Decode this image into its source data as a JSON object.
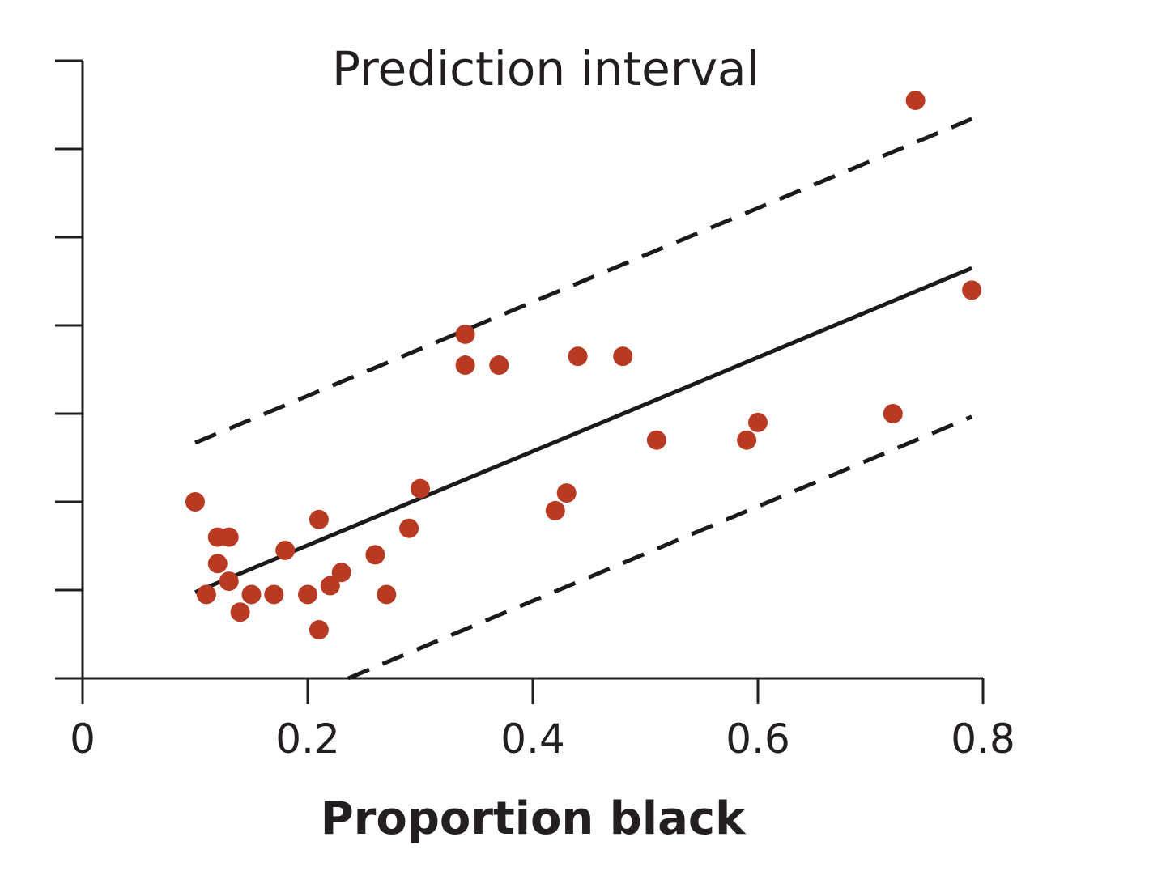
{
  "chart_data": {
    "type": "scatter",
    "title": "Prediction interval",
    "xlabel": "Proportion black",
    "ylabel": "",
    "xlim": [
      0,
      0.8
    ],
    "ylim": [
      0,
      14
    ],
    "x_ticks": [
      "0",
      "0.2",
      "0.4",
      "0.6",
      "0.8"
    ],
    "y_ticks": [
      0,
      2,
      4,
      6,
      8,
      10,
      12,
      14
    ],
    "y_tick_labels_shown": false,
    "grid": false,
    "legend": "none",
    "point_color": "#b83a22",
    "points": [
      [
        0.74,
        13.1
      ],
      [
        0.79,
        8.8
      ],
      [
        0.34,
        7.8
      ],
      [
        0.34,
        7.1
      ],
      [
        0.37,
        7.1
      ],
      [
        0.44,
        7.3
      ],
      [
        0.48,
        7.3
      ],
      [
        0.72,
        6.0
      ],
      [
        0.6,
        5.8
      ],
      [
        0.59,
        5.4
      ],
      [
        0.51,
        5.4
      ],
      [
        0.3,
        4.3
      ],
      [
        0.43,
        4.2
      ],
      [
        0.42,
        3.8
      ],
      [
        0.1,
        4.0
      ],
      [
        0.21,
        3.6
      ],
      [
        0.12,
        3.2
      ],
      [
        0.13,
        3.2
      ],
      [
        0.29,
        3.4
      ],
      [
        0.18,
        2.9
      ],
      [
        0.26,
        2.8
      ],
      [
        0.12,
        2.6
      ],
      [
        0.23,
        2.4
      ],
      [
        0.13,
        2.2
      ],
      [
        0.22,
        2.1
      ],
      [
        0.11,
        1.9
      ],
      [
        0.15,
        1.9
      ],
      [
        0.17,
        1.9
      ],
      [
        0.2,
        1.9
      ],
      [
        0.27,
        1.9
      ],
      [
        0.14,
        1.5
      ],
      [
        0.21,
        1.1
      ]
    ],
    "regression_line": {
      "x": [
        0.1,
        0.79
      ],
      "y": [
        1.95,
        9.3
      ]
    },
    "prediction_interval_upper": {
      "x": [
        0.1,
        0.79
      ],
      "y": [
        5.34,
        12.68
      ]
    },
    "prediction_interval_lower": {
      "x": [
        0.236,
        0.79
      ],
      "y": [
        0.0,
        5.93
      ]
    }
  }
}
